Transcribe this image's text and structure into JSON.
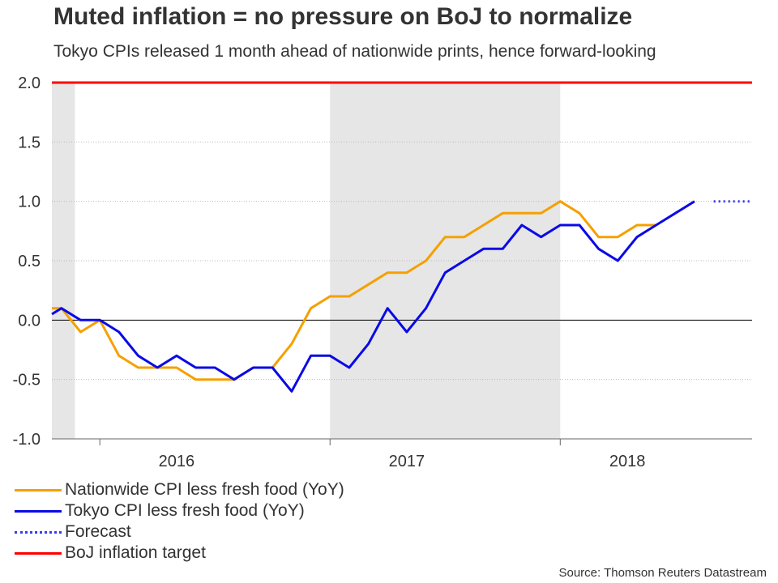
{
  "title": "Muted inflation = no pressure on BoJ to normalize",
  "subtitle": "Tokyo CPIs released 1 month ahead of nationwide prints, hence forward-looking",
  "source": "Source: Thomson Reuters Datastream",
  "colors": {
    "nationwide": "#F5A000",
    "tokyo": "#0A0AE6",
    "forecast": "#3A3AF0",
    "target": "#FF0000",
    "shade": "#E6E6E6",
    "grid": "#BBBBBB",
    "zero": "#000000"
  },
  "chart_data": {
    "type": "line",
    "title": "Muted inflation = no pressure on BoJ to normalize",
    "subtitle": "Tokyo CPIs released 1 month ahead of nationwide prints, hence forward-looking",
    "xlabel": "",
    "ylabel": "",
    "x_start": "2015-06",
    "x_end": "2018-12",
    "ylim": [
      -1.0,
      2.0
    ],
    "yticks": [
      -1.0,
      -0.5,
      0.0,
      0.5,
      1.0,
      1.5,
      2.0
    ],
    "ytick_labels": [
      "-1.0",
      "-0.5",
      "0.0",
      "0.5",
      "1.0",
      "1.5",
      "2.0"
    ],
    "year_labels": [
      {
        "label": "2016",
        "center_month": 6.5
      },
      {
        "label": "2017",
        "center_month": 18.5
      },
      {
        "label": "2018",
        "center_month": 30
      }
    ],
    "year_boundaries": [
      2.5,
      14.5,
      26.5
    ],
    "shaded_ranges": [
      [
        0,
        1.2
      ],
      [
        14.5,
        26.5
      ]
    ],
    "grid": "horizontal dotted",
    "legend_position": "bottom-left",
    "series": [
      {
        "name": "Nationwide CPI less fresh food (YoY)",
        "style": "solid",
        "x_months": [
          0,
          0.5,
          1.5,
          2.5,
          3.5,
          4.5,
          5.5,
          6.5,
          7.5,
          8.5,
          9.5,
          10.5,
          11.5,
          12.5,
          13.5,
          14.5,
          15.5,
          16.5,
          17.5,
          18.5,
          19.5,
          20.5,
          21.5,
          22.5,
          23.5,
          24.5,
          25.5,
          26.5,
          27.5,
          28.5,
          29.5,
          30.5,
          31.5
        ],
        "values": [
          0.1,
          0.1,
          -0.1,
          0.0,
          -0.3,
          -0.4,
          -0.4,
          -0.4,
          -0.5,
          -0.5,
          -0.5,
          -0.4,
          -0.4,
          -0.2,
          0.1,
          0.2,
          0.2,
          0.3,
          0.4,
          0.4,
          0.5,
          0.7,
          0.7,
          0.8,
          0.9,
          0.9,
          0.9,
          1.0,
          0.9,
          0.7,
          0.7,
          0.8,
          0.8
        ]
      },
      {
        "name": "Tokyo CPI less fresh food (YoY)",
        "style": "solid",
        "x_months": [
          0,
          0.5,
          1.5,
          2.5,
          3.5,
          4.5,
          5.5,
          6.5,
          7.5,
          8.5,
          9.5,
          10.5,
          11.5,
          12.5,
          13.5,
          14.5,
          15.5,
          16.5,
          17.5,
          18.5,
          19.5,
          20.5,
          21.5,
          22.5,
          23.5,
          24.5,
          25.5,
          26.5,
          27.5,
          28.5,
          29.5,
          30.5,
          31.5,
          32.5,
          33.5
        ],
        "values": [
          0.05,
          0.1,
          0.0,
          0.0,
          -0.1,
          -0.3,
          -0.4,
          -0.3,
          -0.4,
          -0.4,
          -0.5,
          -0.4,
          -0.4,
          -0.6,
          -0.3,
          -0.3,
          -0.4,
          -0.2,
          0.1,
          -0.1,
          0.1,
          0.4,
          0.5,
          0.6,
          0.6,
          0.8,
          0.7,
          0.8,
          0.8,
          0.6,
          0.5,
          0.7,
          0.8,
          0.9,
          1.0
        ]
      },
      {
        "name": "Forecast",
        "style": "dotted",
        "x_months": [
          34.5,
          35.5,
          36.5
        ],
        "values": [
          1.0,
          1.0,
          1.0
        ]
      },
      {
        "name": "BoJ inflation target",
        "style": "solid",
        "x_months": [
          0,
          36.5
        ],
        "values": [
          2.0,
          2.0
        ]
      }
    ]
  },
  "legend": [
    {
      "label": "Nationwide CPI less fresh food (YoY)",
      "color": "#F5A000",
      "style": "solid"
    },
    {
      "label": "Tokyo CPI less fresh food (YoY)",
      "color": "#0A0AE6",
      "style": "solid"
    },
    {
      "label": "Forecast",
      "color": "#3A3AF0",
      "style": "dotted"
    },
    {
      "label": "BoJ inflation target",
      "color": "#FF0000",
      "style": "solid"
    }
  ]
}
